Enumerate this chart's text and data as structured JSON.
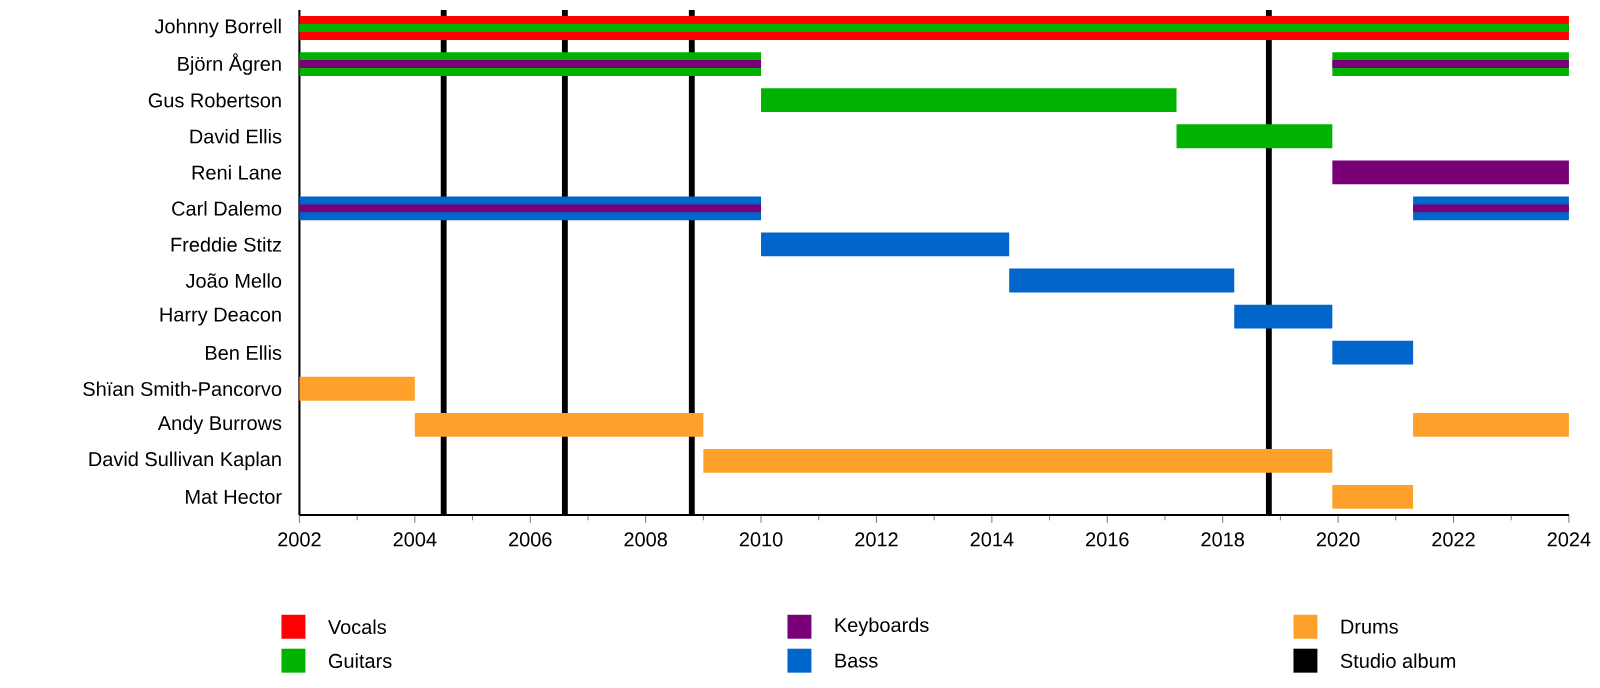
{
  "chart_data": {
    "type": "bar",
    "orientation": "horizontal",
    "grid": false,
    "legend": "bottom",
    "categories": [
      "Johnny Borrell",
      "Björn Ågren",
      "Gus Robertson",
      "David Ellis",
      "Reni Lane",
      "Carl Dalemo",
      "Freddie Stitz",
      "João Mello",
      "Harry Deacon",
      "Ben Ellis",
      "Shïan Smith-Pancorvo",
      "Andy Burrows",
      "David Sullivan Kaplan",
      "Mat Hector"
    ],
    "xlim": [
      2002,
      2024
    ],
    "xticks": [
      2002,
      2004,
      2006,
      2008,
      2010,
      2012,
      2014,
      2016,
      2018,
      2020,
      2022,
      2024
    ],
    "series": [
      {
        "name": "Vocals",
        "color": "#ff0000",
        "base": [
          2002,
          null,
          null,
          null,
          null,
          null,
          null,
          null,
          null,
          null,
          null,
          null,
          null,
          null
        ],
        "values": [
          22,
          null,
          null,
          null,
          null,
          null,
          null,
          null,
          null,
          null,
          null,
          null,
          null,
          null
        ]
      },
      {
        "name": "Guitars",
        "color": "#00b300",
        "base": [
          2002,
          2002,
          2010,
          2017.2,
          null,
          null,
          null,
          null,
          null,
          null,
          null,
          null,
          null,
          null
        ],
        "values": [
          22,
          8,
          7.2,
          2.7,
          null,
          null,
          null,
          null,
          null,
          null,
          null,
          null,
          null,
          null
        ]
      },
      {
        "name": "Keyboards",
        "color": "#7a0078",
        "base": [
          null,
          2002,
          null,
          null,
          2019.9,
          null,
          null,
          null,
          null,
          null,
          null,
          null,
          null,
          null
        ],
        "values": [
          null,
          8,
          null,
          null,
          4.1,
          null,
          null,
          null,
          null,
          null,
          null,
          null,
          null,
          null
        ]
      },
      {
        "name": "Bass",
        "color": "#0066cc",
        "base": [
          null,
          null,
          null,
          null,
          null,
          2002,
          2010,
          2014.3,
          2018.2,
          2019.9,
          null,
          null,
          null,
          null
        ],
        "values": [
          null,
          null,
          null,
          null,
          null,
          8,
          4.3,
          3.9,
          1.7,
          1.4,
          null,
          null,
          null,
          null
        ]
      },
      {
        "name": "Drums",
        "color": "#ffa02a",
        "base": [
          null,
          null,
          null,
          null,
          null,
          null,
          null,
          null,
          null,
          null,
          2002,
          2004,
          2009,
          2019.9
        ],
        "values": [
          null,
          null,
          null,
          null,
          null,
          null,
          null,
          null,
          null,
          null,
          2,
          5,
          10.9,
          1.4
        ]
      },
      {
        "color": "#00b300",
        "base": [
          null,
          2019.9,
          null,
          null,
          null,
          null,
          null,
          null,
          null,
          null,
          null,
          null,
          null,
          null
        ],
        "values": [
          null,
          4.1,
          null,
          null,
          null,
          null,
          null,
          null,
          null,
          null,
          null,
          null,
          null,
          null
        ]
      },
      {
        "color": "#0066cc",
        "base": [
          null,
          null,
          null,
          null,
          null,
          2021.3,
          null,
          null,
          null,
          null,
          null,
          null,
          null,
          null
        ],
        "values": [
          null,
          null,
          null,
          null,
          null,
          2.7,
          null,
          null,
          null,
          null,
          null,
          null,
          null,
          null
        ]
      },
      {
        "color": "#ffa02a",
        "base": [
          null,
          null,
          null,
          null,
          null,
          null,
          null,
          null,
          null,
          null,
          null,
          2021.3,
          null,
          null
        ],
        "values": [
          null,
          null,
          null,
          null,
          null,
          null,
          null,
          null,
          null,
          null,
          null,
          2.7,
          null,
          null
        ]
      },
      {
        "color": "#7a0078",
        "base": [
          null,
          2019.9,
          null,
          null,
          null,
          2002,
          null,
          null,
          null,
          null,
          null,
          null,
          null,
          null
        ],
        "values": [
          null,
          4.1,
          null,
          null,
          null,
          8,
          null,
          null,
          null,
          null,
          null,
          null,
          null,
          null
        ]
      },
      {
        "color": "#7a0078",
        "base": [
          null,
          null,
          null,
          null,
          null,
          2021.3,
          null,
          null,
          null,
          null,
          null,
          null,
          null,
          null
        ],
        "values": [
          null,
          null,
          null,
          null,
          null,
          2.7,
          null,
          null,
          null,
          null,
          null,
          null,
          null,
          null
        ]
      }
    ],
    "ref_lines": [
      {
        "axis": "x",
        "value": 2004.5,
        "color": "#000000",
        "label": "Studio album"
      },
      {
        "axis": "x",
        "value": 2006.6,
        "color": "#000000"
      },
      {
        "axis": "x",
        "value": 2008.8,
        "color": "#000000"
      },
      {
        "axis": "x",
        "value": 2018.8,
        "color": "#000000"
      }
    ]
  }
}
